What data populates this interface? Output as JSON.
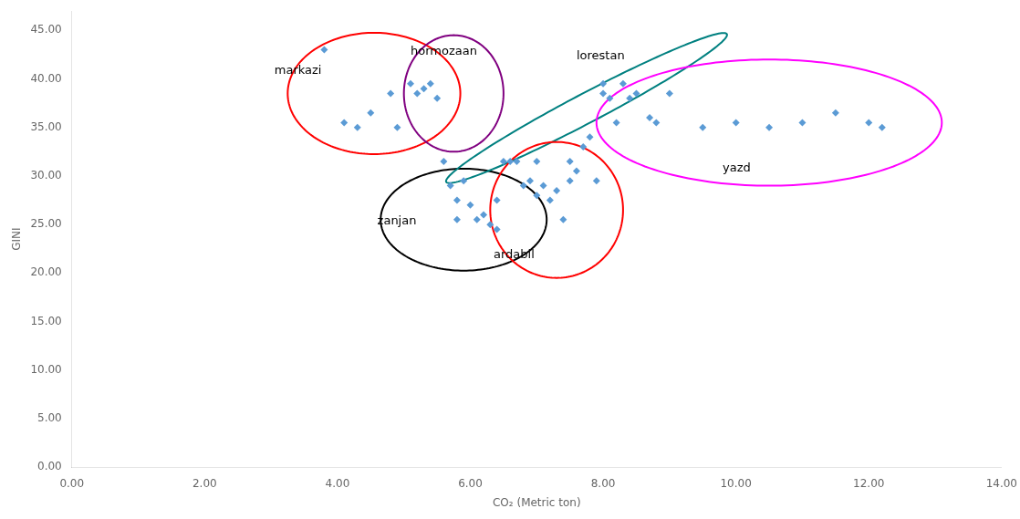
{
  "chart_data": {
    "type": "scatter",
    "xlabel": "CO₂ (Metric ton)",
    "ylabel": "GINI",
    "xlim": [
      0,
      14
    ],
    "ylim": [
      0,
      47
    ],
    "xticks": [
      {
        "value": 0.0,
        "label": "0.00"
      },
      {
        "value": 2.0,
        "label": "2.00"
      },
      {
        "value": 4.0,
        "label": "4.00"
      },
      {
        "value": 6.0,
        "label": "6.00"
      },
      {
        "value": 8.0,
        "label": "8.00"
      },
      {
        "value": 10.0,
        "label": "10.00"
      },
      {
        "value": 12.0,
        "label": "12.00"
      },
      {
        "value": 14.0,
        "label": "14.00"
      }
    ],
    "yticks": [
      {
        "value": 0.0,
        "label": "0.00"
      },
      {
        "value": 5.0,
        "label": "5.00"
      },
      {
        "value": 10.0,
        "label": "10.00"
      },
      {
        "value": 15.0,
        "label": "15.00"
      },
      {
        "value": 20.0,
        "label": "20.00"
      },
      {
        "value": 25.0,
        "label": "25.00"
      },
      {
        "value": 30.0,
        "label": "30.00"
      },
      {
        "value": 35.0,
        "label": "35.00"
      },
      {
        "value": 40.0,
        "label": "40.00"
      },
      {
        "value": 45.0,
        "label": "45.00"
      }
    ],
    "grid": false,
    "color": "#5B9BD5",
    "marker": "diamond",
    "x": [
      3.8,
      4.1,
      4.3,
      4.5,
      4.8,
      4.9,
      5.1,
      5.2,
      5.3,
      5.4,
      5.5,
      5.6,
      5.7,
      5.8,
      5.8,
      5.9,
      6.0,
      6.1,
      6.2,
      6.3,
      6.4,
      6.4,
      6.5,
      6.6,
      6.7,
      6.8,
      6.9,
      7.0,
      7.0,
      7.1,
      7.2,
      7.3,
      7.4,
      7.5,
      7.5,
      7.6,
      7.7,
      7.8,
      7.9,
      8.0,
      8.0,
      8.1,
      8.2,
      8.3,
      8.4,
      8.5,
      8.7,
      8.8,
      9.0,
      9.5,
      10.0,
      10.5,
      11.0,
      11.5,
      12.0,
      12.2
    ],
    "values": [
      43.0,
      35.5,
      35.0,
      36.5,
      38.5,
      35.0,
      39.5,
      38.5,
      39.0,
      39.5,
      38.0,
      31.5,
      29.0,
      27.5,
      25.5,
      29.5,
      27.0,
      25.5,
      26.0,
      25.0,
      24.5,
      27.5,
      31.5,
      31.5,
      31.5,
      29.0,
      29.5,
      28.0,
      31.5,
      29.0,
      27.5,
      28.5,
      25.5,
      29.5,
      31.5,
      30.5,
      33.0,
      34.0,
      29.5,
      39.5,
      38.5,
      38.0,
      35.5,
      39.5,
      38.0,
      38.5,
      36.0,
      35.5,
      38.5,
      35.0,
      35.5,
      35.0,
      35.5,
      36.5,
      35.5,
      35.0
    ],
    "ellipses": [
      {
        "label": "markazi",
        "x_center": 4.55,
        "y_center": 38.5,
        "width": 2.6,
        "height": 12.5,
        "angle": 0,
        "color": "red",
        "text_x": 3.05,
        "text_y": 40.5
      },
      {
        "label": "hormozaan",
        "x_center": 5.75,
        "y_center": 38.5,
        "width": 1.5,
        "height": 12.0,
        "angle": 0,
        "color": "purple",
        "text_x": 5.1,
        "text_y": 42.5
      },
      {
        "label": "zanjan",
        "x_center": 5.9,
        "y_center": 25.5,
        "width": 2.5,
        "height": 10.5,
        "angle": 0,
        "color": "black",
        "text_x": 4.6,
        "text_y": 25.0
      },
      {
        "label": "lorestan",
        "x_center": 7.75,
        "y_center": 37.0,
        "width": 0.9,
        "height": 16.0,
        "angle": -15,
        "color": "teal",
        "text_x": 7.6,
        "text_y": 42.0
      },
      {
        "label": "ardabil",
        "x_center": 7.3,
        "y_center": 26.5,
        "width": 2.0,
        "height": 14.0,
        "angle": 0,
        "color": "red",
        "text_x": 6.35,
        "text_y": 21.5
      },
      {
        "label": "yazd",
        "x_center": 10.5,
        "y_center": 35.5,
        "width": 5.2,
        "height": 13.0,
        "angle": 0,
        "color": "magenta",
        "text_x": 9.8,
        "text_y": 30.5
      }
    ]
  }
}
